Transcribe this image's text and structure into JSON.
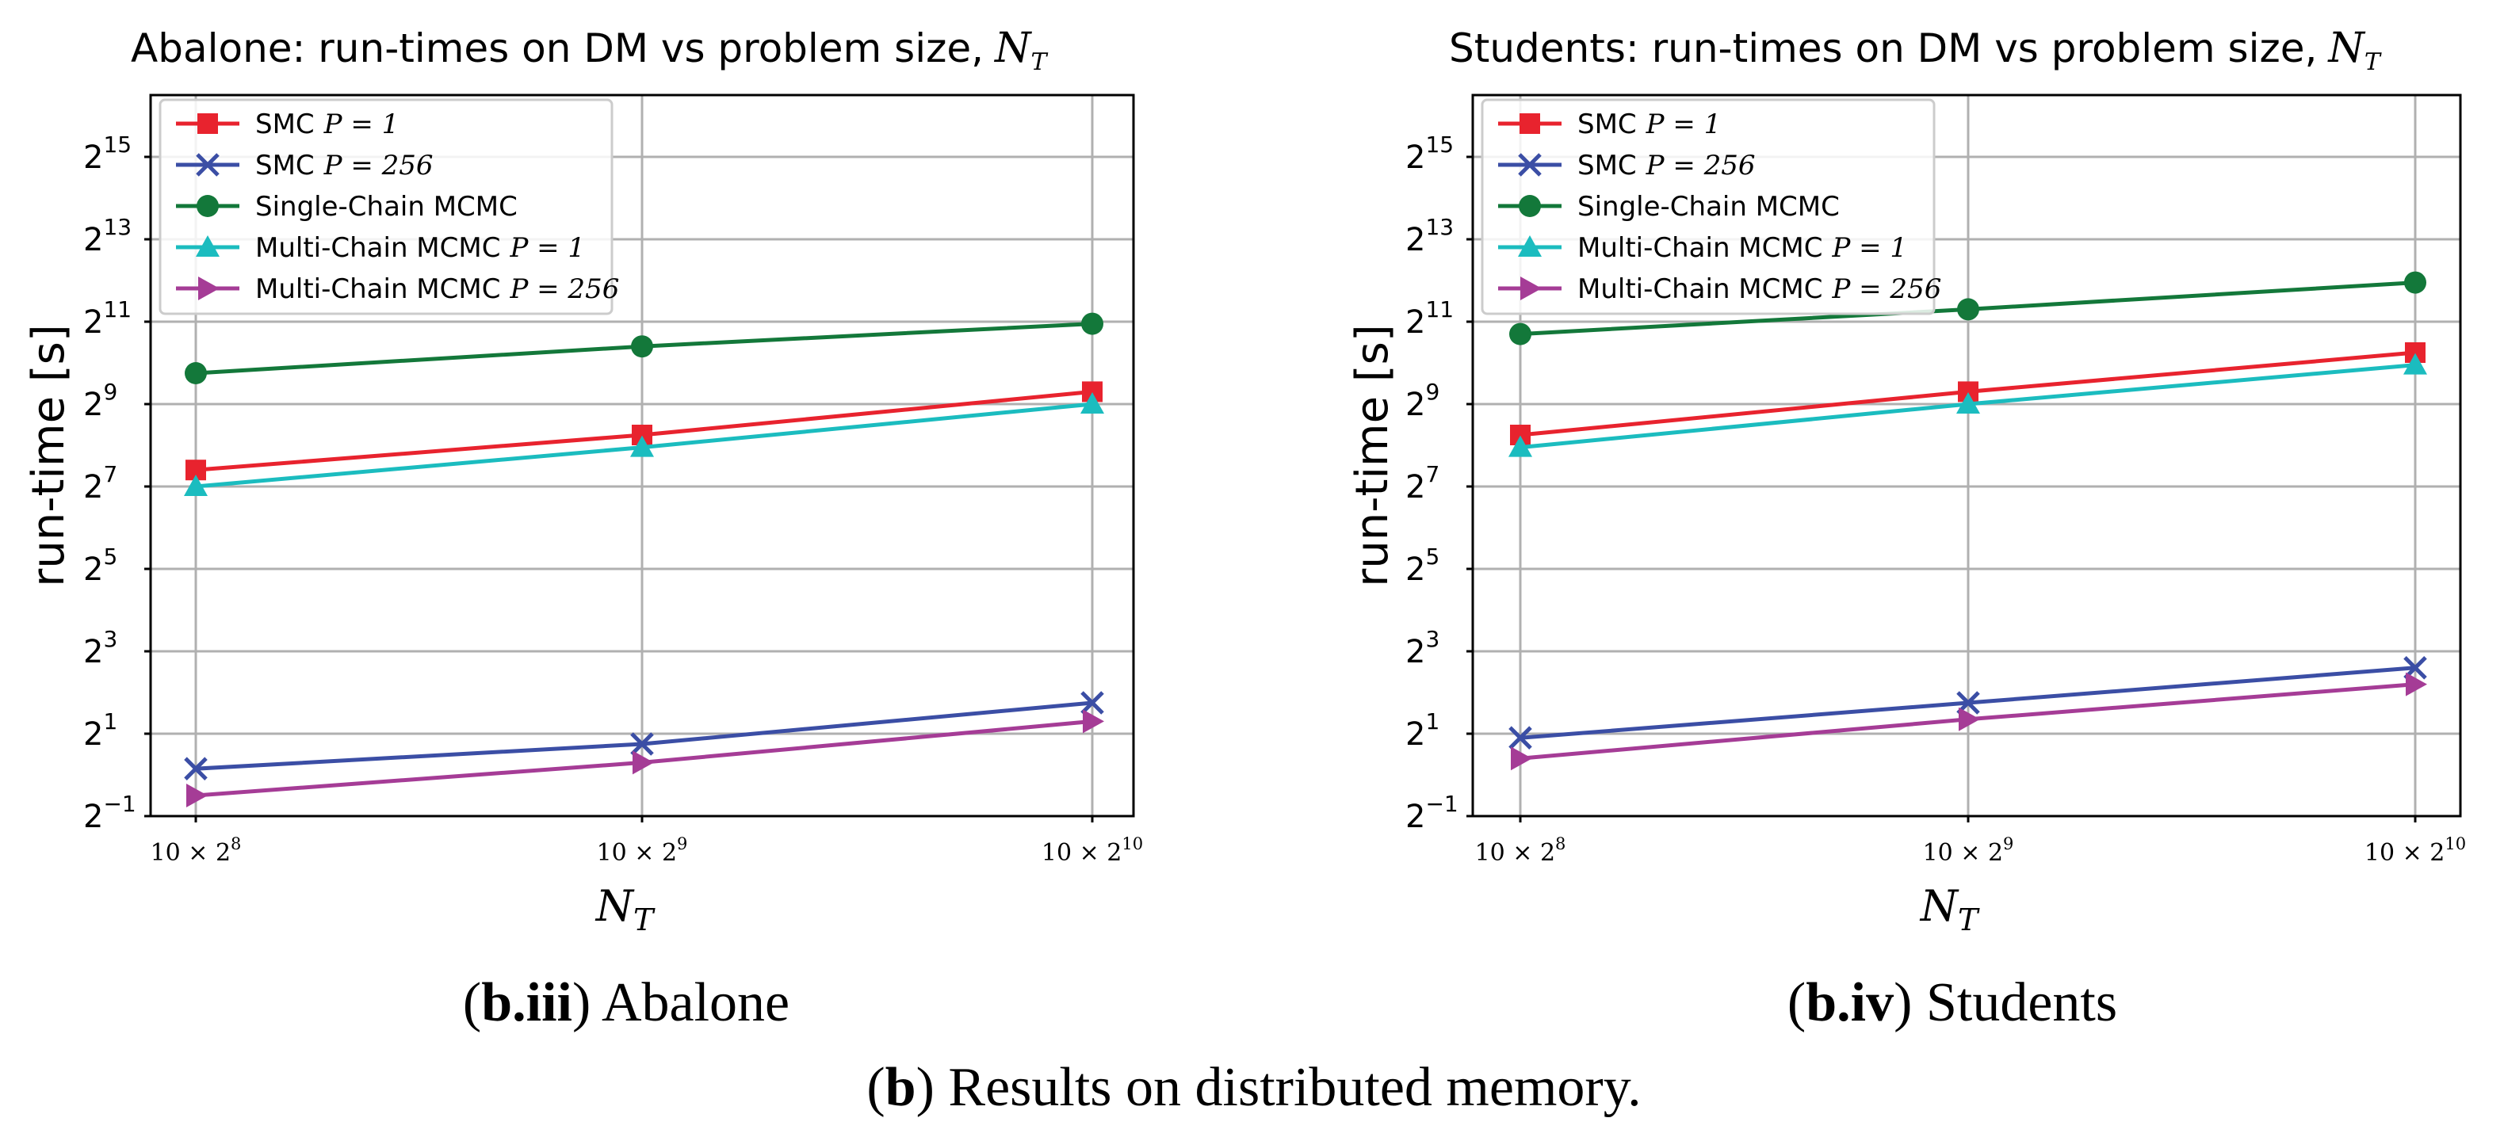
{
  "chart_data": [
    {
      "type": "line",
      "title": "Abalone: run-times on DM vs problem size,",
      "title_math": "N",
      "title_math_sub": "T",
      "xlabel": "N",
      "xlabel_sub": "T",
      "ylabel": "run-time [s]",
      "y_scale": "log2",
      "ylim_exp": [
        -1,
        16.5
      ],
      "y_ticks": [
        {
          "base": "2",
          "exp": "15",
          "value": 15
        },
        {
          "base": "2",
          "exp": "13",
          "value": 13
        },
        {
          "base": "2",
          "exp": "11",
          "value": 11
        },
        {
          "base": "2",
          "exp": "9",
          "value": 9
        },
        {
          "base": "2",
          "exp": "7",
          "value": 7
        },
        {
          "base": "2",
          "exp": "5",
          "value": 5
        },
        {
          "base": "2",
          "exp": "3",
          "value": 3
        },
        {
          "base": "2",
          "exp": "1",
          "value": 1
        },
        {
          "base": "2",
          "exp": "−1",
          "value": -1
        }
      ],
      "x_ticks": [
        {
          "base": "10 × 2",
          "exp": "8"
        },
        {
          "base": "10 × 2",
          "exp": "9"
        },
        {
          "base": "10 × 2",
          "exp": "10"
        }
      ],
      "legend_position": "top-left",
      "series": [
        {
          "name": "SMC",
          "math": "P = 1",
          "color": "#e8232e",
          "marker": "square",
          "log2_values": [
            7.4,
            8.25,
            9.3
          ]
        },
        {
          "name": "SMC",
          "math": "P = 256",
          "color": "#3b4ea5",
          "marker": "x",
          "log2_values": [
            0.15,
            0.75,
            1.75
          ]
        },
        {
          "name": "Single-Chain MCMC",
          "math": "",
          "color": "#13783a",
          "marker": "circle",
          "log2_values": [
            9.75,
            10.4,
            10.95
          ]
        },
        {
          "name": "Multi-Chain MCMC",
          "math": "P = 1",
          "color": "#1bbcbf",
          "marker": "triangle-up",
          "log2_values": [
            7.0,
            7.95,
            9.0
          ]
        },
        {
          "name": "Multi-Chain MCMC",
          "math": "P = 256",
          "color": "#a53c96",
          "marker": "triangle-right",
          "log2_values": [
            -0.5,
            0.3,
            1.3
          ]
        }
      ],
      "caption_bold": "b.iii",
      "caption_text": " Abalone"
    },
    {
      "type": "line",
      "title": "Students: run-times on DM vs problem size,",
      "title_math": "N",
      "title_math_sub": "T",
      "xlabel": "N",
      "xlabel_sub": "T",
      "ylabel": "run-time [s]",
      "y_scale": "log2",
      "ylim_exp": [
        -1,
        16.5
      ],
      "y_ticks": [
        {
          "base": "2",
          "exp": "15",
          "value": 15
        },
        {
          "base": "2",
          "exp": "13",
          "value": 13
        },
        {
          "base": "2",
          "exp": "11",
          "value": 11
        },
        {
          "base": "2",
          "exp": "9",
          "value": 9
        },
        {
          "base": "2",
          "exp": "7",
          "value": 7
        },
        {
          "base": "2",
          "exp": "5",
          "value": 5
        },
        {
          "base": "2",
          "exp": "3",
          "value": 3
        },
        {
          "base": "2",
          "exp": "1",
          "value": 1
        },
        {
          "base": "2",
          "exp": "−1",
          "value": -1
        }
      ],
      "x_ticks": [
        {
          "base": "10 × 2",
          "exp": "8"
        },
        {
          "base": "10 × 2",
          "exp": "9"
        },
        {
          "base": "10 × 2",
          "exp": "10"
        }
      ],
      "legend_position": "top-left",
      "series": [
        {
          "name": "SMC",
          "math": "P = 1",
          "color": "#e8232e",
          "marker": "square",
          "log2_values": [
            8.25,
            9.3,
            10.25
          ]
        },
        {
          "name": "SMC",
          "math": "P = 256",
          "color": "#3b4ea5",
          "marker": "x",
          "log2_values": [
            0.9,
            1.75,
            2.6
          ]
        },
        {
          "name": "Single-Chain MCMC",
          "math": "",
          "color": "#13783a",
          "marker": "circle",
          "log2_values": [
            10.7,
            11.3,
            11.95
          ]
        },
        {
          "name": "Multi-Chain MCMC",
          "math": "P = 1",
          "color": "#1bbcbf",
          "marker": "triangle-up",
          "log2_values": [
            7.95,
            9.0,
            9.95
          ]
        },
        {
          "name": "Multi-Chain MCMC",
          "math": "P = 256",
          "color": "#a53c96",
          "marker": "triangle-right",
          "log2_values": [
            0.4,
            1.35,
            2.2
          ]
        }
      ],
      "caption_bold": "b.iv",
      "caption_text": " Students"
    }
  ],
  "figure_caption": {
    "bold": "b",
    "text": " Results on distributed memory."
  }
}
